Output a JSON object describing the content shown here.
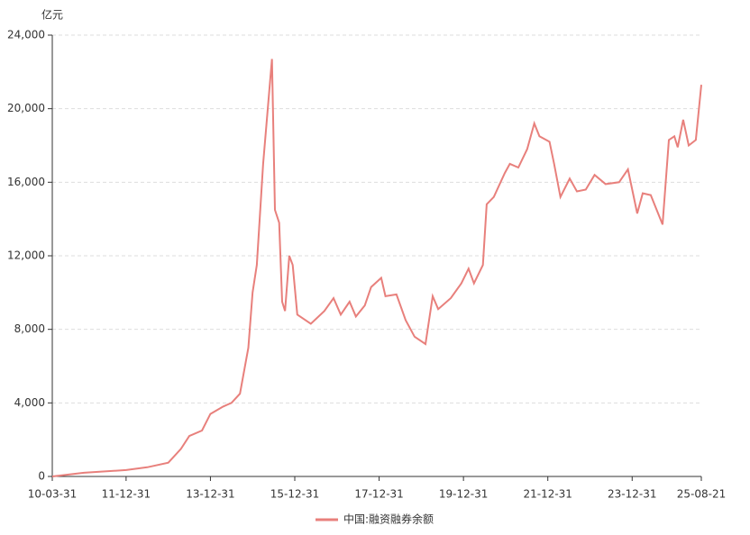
{
  "chart_data": {
    "type": "line",
    "y_label": "亿元",
    "x": [
      2010.25,
      2011,
      2012,
      2012.5,
      2013,
      2013.3,
      2013.5,
      2013.8,
      2014.0,
      2014.3,
      2014.5,
      2014.7,
      2014.9,
      2015.0,
      2015.1,
      2015.25,
      2015.46,
      2015.53,
      2015.63,
      2015.7,
      2015.77,
      2015.87,
      2015.95,
      2016.06,
      2016.38,
      2016.7,
      2016.92,
      2017.09,
      2017.3,
      2017.45,
      2017.66,
      2017.81,
      2018.05,
      2018.15,
      2018.41,
      2018.63,
      2018.84,
      2019.1,
      2019.27,
      2019.4,
      2019.7,
      2019.95,
      2020.12,
      2020.25,
      2020.46,
      2020.55,
      2020.72,
      2020.98,
      2021.1,
      2021.3,
      2021.51,
      2021.68,
      2021.8,
      2022.04,
      2022.15,
      2022.3,
      2022.52,
      2022.69,
      2022.9,
      2023.11,
      2023.37,
      2023.69,
      2023.9,
      2024.12,
      2024.25,
      2024.44,
      2024.72,
      2024.87,
      2025.0,
      2025.08,
      2025.21,
      2025.34,
      2025.51,
      2025.64
    ],
    "series": [
      {
        "name": "中国:融资融券余额",
        "color": "#e8807c",
        "values": [
          0,
          200,
          350,
          500,
          750,
          1500,
          2200,
          2500,
          3400,
          3800,
          4000,
          4500,
          7000,
          10000,
          11500,
          17000,
          22700,
          14500,
          13800,
          9500,
          9000,
          12000,
          11500,
          8800,
          8300,
          9000,
          9700,
          8800,
          9500,
          8700,
          9300,
          10300,
          10800,
          9800,
          9900,
          8500,
          7600,
          7200,
          9800,
          9100,
          9700,
          10500,
          11300,
          10500,
          11500,
          14800,
          15200,
          16500,
          17000,
          16800,
          17800,
          19200,
          18500,
          18200,
          17000,
          15200,
          16200,
          15500,
          15600,
          16400,
          15900,
          16000,
          16700,
          14300,
          15400,
          15300,
          13700,
          18300,
          18500,
          17900,
          19400,
          18000,
          18300,
          21300
        ]
      }
    ],
    "xlim": [
      2010.25,
      2025.64
    ],
    "xticks": [
      {
        "value": 2010.25,
        "label": "10-03-31"
      },
      {
        "value": 2012.0,
        "label": "11-12-31"
      },
      {
        "value": 2014.0,
        "label": "13-12-31"
      },
      {
        "value": 2016.0,
        "label": "15-12-31"
      },
      {
        "value": 2018.0,
        "label": "17-12-31"
      },
      {
        "value": 2020.0,
        "label": "19-12-31"
      },
      {
        "value": 2022.0,
        "label": "21-12-31"
      },
      {
        "value": 2024.0,
        "label": "23-12-31"
      },
      {
        "value": 2025.64,
        "label": "25-08-21"
      }
    ],
    "ylim": [
      0,
      24000
    ],
    "yticks": [
      0,
      {
        "value": 4000,
        "label": "4,000"
      },
      {
        "value": 8000,
        "label": "8,000"
      },
      {
        "value": 12000,
        "label": "12,000"
      },
      {
        "value": 16000,
        "label": "16,000"
      },
      {
        "value": 20000,
        "label": "20,000"
      },
      {
        "value": 24000,
        "label": "24,000"
      }
    ],
    "grid": true
  }
}
